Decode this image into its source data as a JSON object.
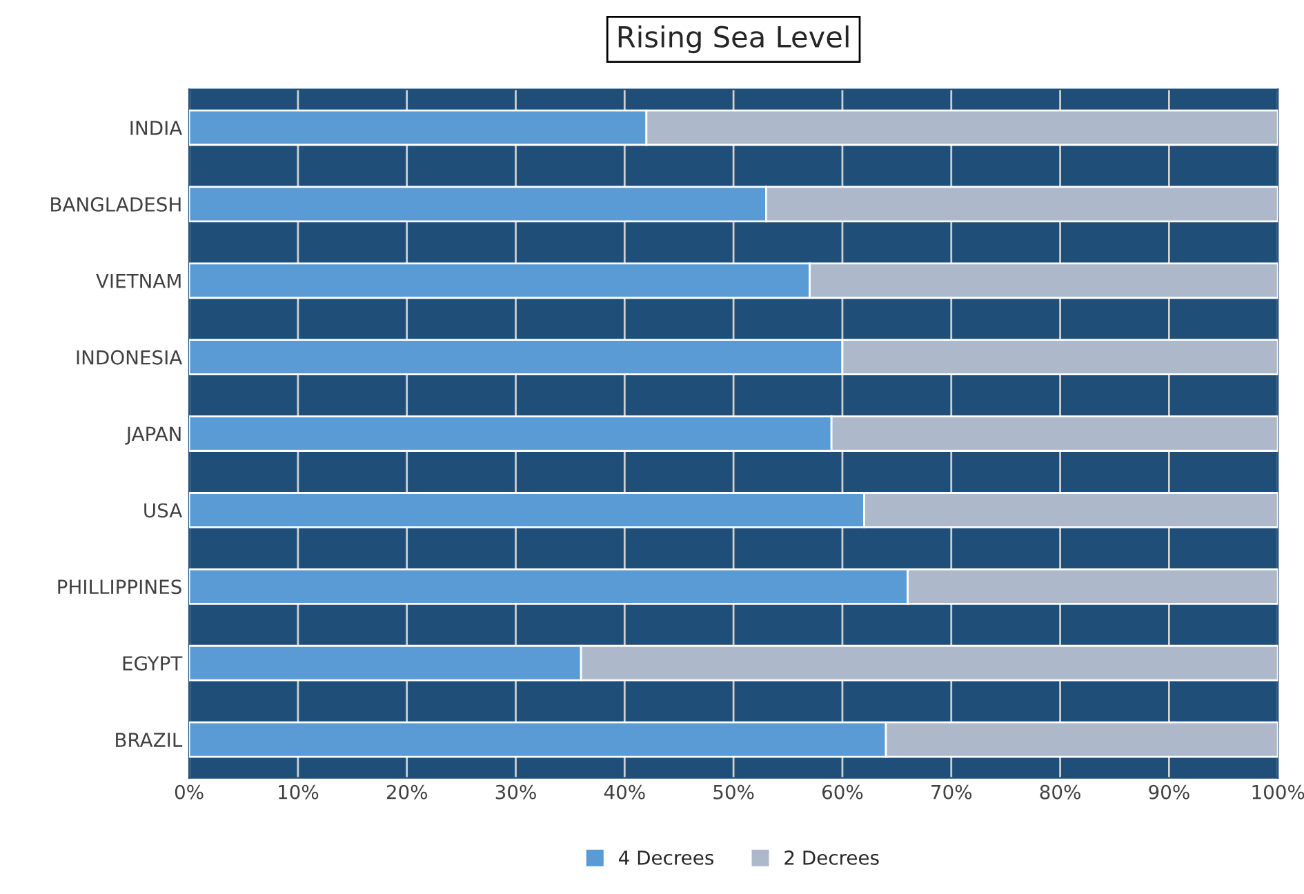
{
  "chart_data": {
    "type": "bar",
    "title": "Rising Sea Level",
    "orientation": "horizontal",
    "stacked": true,
    "categories": [
      "INDIA",
      "BANGLADESH",
      "VIETNAM",
      "INDONESIA",
      "JAPAN",
      "USA",
      "PHILLIPPINES",
      "EGYPT",
      "BRAZIL"
    ],
    "series": [
      {
        "name": "4 Decrees",
        "color": "#5b9bd5",
        "values": [
          42,
          53,
          57,
          60,
          59,
          62,
          66,
          36,
          64
        ]
      },
      {
        "name": "2 Decrees",
        "color": "#adb9ca",
        "values": [
          58,
          47,
          43,
          40,
          41,
          38,
          34,
          64,
          36
        ]
      }
    ],
    "xlim": [
      0,
      100
    ],
    "xticks": [
      {
        "value": 0,
        "label": "0%"
      },
      {
        "value": 10,
        "label": "10%"
      },
      {
        "value": 20,
        "label": "20%"
      },
      {
        "value": 30,
        "label": "30%"
      },
      {
        "value": 40,
        "label": "40%"
      },
      {
        "value": 50,
        "label": "50%"
      },
      {
        "value": 60,
        "label": "60%"
      },
      {
        "value": 70,
        "label": "70%"
      },
      {
        "value": 80,
        "label": "80%"
      },
      {
        "value": 90,
        "label": "90%"
      },
      {
        "value": 100,
        "label": "100%"
      }
    ],
    "grid": "x",
    "legend": "bottom"
  }
}
